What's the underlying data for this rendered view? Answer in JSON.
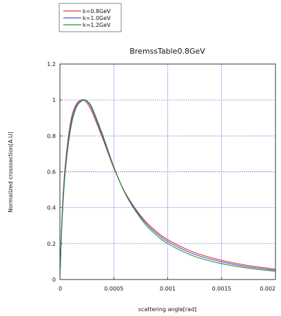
{
  "chart_data": {
    "type": "line",
    "title": "BremssTable0.8GeV",
    "xlabel": "scattering angle[rad]",
    "ylabel": "Normalized crosssection[A.U]",
    "xlim": [
      0,
      0.002
    ],
    "ylim": [
      0,
      1.2
    ],
    "xticks": [
      0,
      0.0005,
      0.001,
      0.0015,
      0.002
    ],
    "xtick_labels": [
      "0",
      "0.0005",
      "0.001",
      "0.0015",
      "0.002"
    ],
    "yticks": [
      0,
      0.2,
      0.4,
      0.6,
      0.8,
      1,
      1.2
    ],
    "ytick_labels": [
      "0",
      "0.2",
      "0.4",
      "0.6",
      "0.8",
      "1",
      "1.2"
    ],
    "grid": true,
    "legend_position": "top-left, outside",
    "series": [
      {
        "name": "k=0.8GeV",
        "color": "#e8322c",
        "x": [
          0,
          2e-05,
          5e-05,
          0.0001,
          0.00015,
          0.0002,
          0.00023,
          0.00026,
          0.0003,
          0.0004,
          0.0005,
          0.0006,
          0.0007,
          0.0008,
          0.0009,
          0.001,
          0.0012,
          0.0014,
          0.0016,
          0.0018,
          0.002
        ],
        "y": [
          0,
          0.36,
          0.64,
          0.88,
          0.975,
          1.0,
          0.995,
          0.975,
          0.93,
          0.78,
          0.62,
          0.49,
          0.395,
          0.32,
          0.265,
          0.222,
          0.162,
          0.122,
          0.094,
          0.073,
          0.058
        ]
      },
      {
        "name": "k=1.0GeV",
        "color": "#3f56d8",
        "x": [
          0,
          2e-05,
          5e-05,
          0.0001,
          0.00015,
          0.0002,
          0.00023,
          0.00026,
          0.0003,
          0.0004,
          0.0005,
          0.0006,
          0.0007,
          0.0008,
          0.0009,
          0.001,
          0.0012,
          0.0014,
          0.0016,
          0.0018,
          0.002
        ],
        "y": [
          0,
          0.34,
          0.62,
          0.86,
          0.965,
          0.998,
          1.0,
          0.985,
          0.945,
          0.79,
          0.625,
          0.488,
          0.39,
          0.312,
          0.256,
          0.212,
          0.152,
          0.113,
          0.086,
          0.066,
          0.052
        ]
      },
      {
        "name": "k=1.2GeV",
        "color": "#2e8a3a",
        "x": [
          0,
          2e-05,
          5e-05,
          0.0001,
          0.00015,
          0.0002,
          0.00023,
          0.00026,
          0.0003,
          0.0004,
          0.0005,
          0.0006,
          0.0007,
          0.0008,
          0.0009,
          0.001,
          0.0012,
          0.0014,
          0.0016,
          0.0018,
          0.002
        ],
        "y": [
          0,
          0.32,
          0.6,
          0.84,
          0.955,
          0.993,
          1.0,
          0.99,
          0.955,
          0.8,
          0.628,
          0.485,
          0.382,
          0.302,
          0.245,
          0.2,
          0.14,
          0.102,
          0.077,
          0.059,
          0.046
        ]
      }
    ]
  }
}
